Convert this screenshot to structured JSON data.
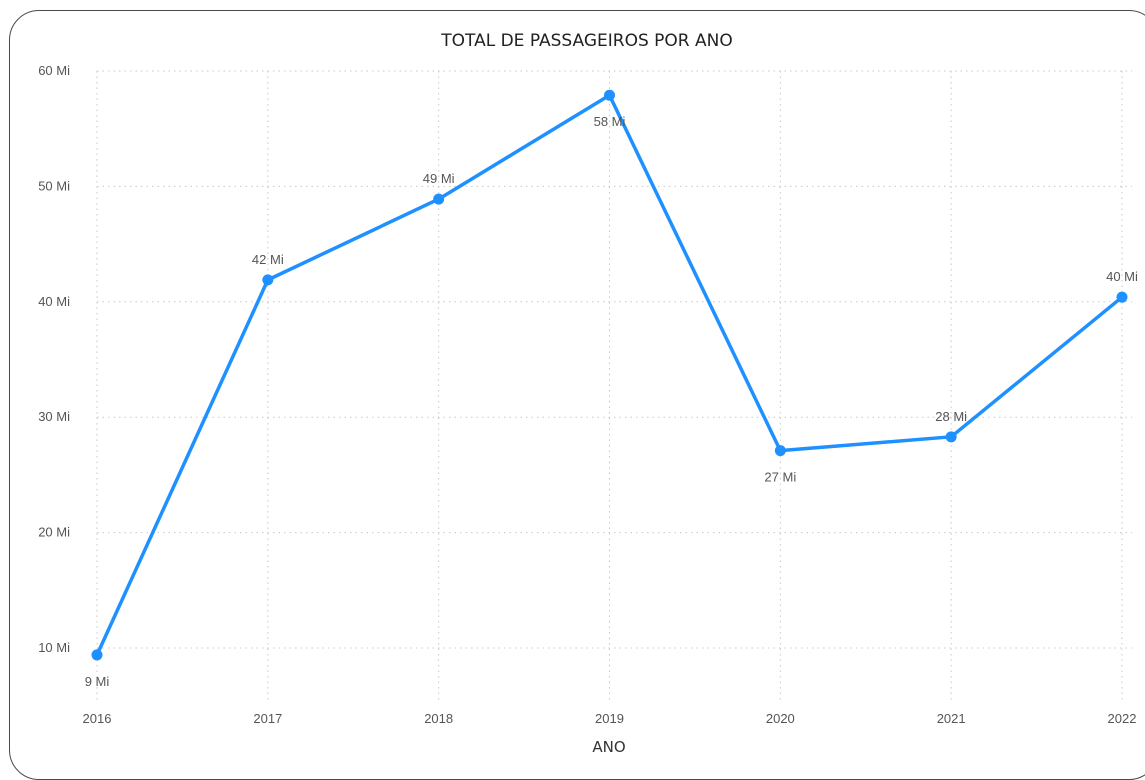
{
  "chart_data": {
    "type": "line",
    "title": "TOTAL DE PASSAGEIROS POR ANO",
    "xlabel": "ANO",
    "ylabel": "",
    "categories": [
      "2016",
      "2017",
      "2018",
      "2019",
      "2020",
      "2021",
      "2022"
    ],
    "series": [
      {
        "values": [
          9.4,
          41.9,
          48.9,
          57.9,
          27.1,
          28.3,
          40.4
        ],
        "labels": [
          "9 Mi",
          "42 Mi",
          "49 Mi",
          "58 Mi",
          "27 Mi",
          "28 Mi",
          "40 Mi"
        ]
      }
    ],
    "y_ticks": [
      10,
      20,
      30,
      40,
      50,
      60
    ],
    "y_tick_labels": [
      "10 Mi",
      "20 Mi",
      "30 Mi",
      "40 Mi",
      "50 Mi",
      "60 Mi"
    ],
    "ylim": [
      5,
      60
    ],
    "grid": true,
    "colors": {
      "line": "#1E90FF",
      "grid": "#c8c8c8"
    }
  }
}
